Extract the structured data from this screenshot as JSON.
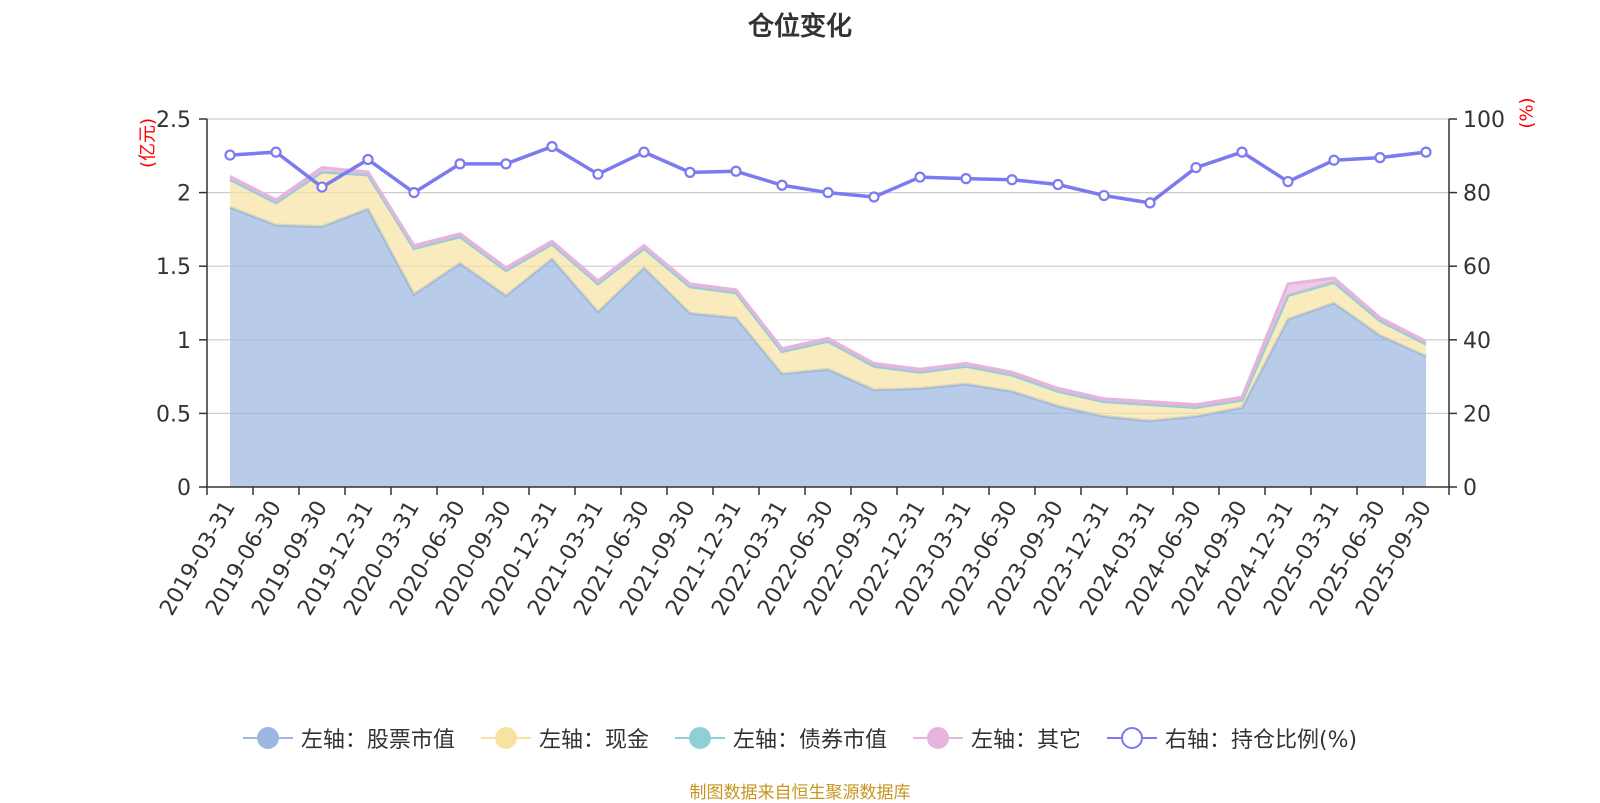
{
  "title": "仓位变化",
  "source_note": "制图数据来自恒生聚源数据库",
  "colors": {
    "stock": "#9db7e0",
    "cash": "#f7e3a1",
    "bond": "#8fd0d6",
    "other": "#e6b4dc",
    "ratio": "#7b7bef",
    "axis_unit": "#ff0000",
    "source": "#c8961e"
  },
  "chart_data": {
    "type": "area",
    "title": "仓位变化",
    "x": [
      "2019-03-31",
      "2019-06-30",
      "2019-09-30",
      "2019-12-31",
      "2020-03-31",
      "2020-06-30",
      "2020-09-30",
      "2020-12-31",
      "2021-03-31",
      "2021-06-30",
      "2021-09-30",
      "2021-12-31",
      "2022-03-31",
      "2022-06-30",
      "2022-09-30",
      "2022-12-31",
      "2023-03-31",
      "2023-06-30",
      "2023-09-30",
      "2023-12-31",
      "2024-03-31",
      "2024-06-30",
      "2024-09-30",
      "2024-12-31",
      "2025-03-31",
      "2025-06-30",
      "2025-09-30"
    ],
    "left_axis": {
      "unit": "(亿元)",
      "ylim": [
        0,
        2.5
      ],
      "ticks": [
        "0",
        "0.5",
        "1",
        "1.5",
        "2",
        "2.5"
      ]
    },
    "right_axis": {
      "unit": "(%)",
      "ylim": [
        0,
        100
      ],
      "ticks": [
        "0",
        "20",
        "40",
        "60",
        "80",
        "100"
      ]
    },
    "series": [
      {
        "name": "左轴：股票市值",
        "axis": "left",
        "stacked": true,
        "color_key": "stock",
        "values": [
          1.9,
          1.78,
          1.77,
          1.89,
          1.31,
          1.52,
          1.3,
          1.55,
          1.19,
          1.49,
          1.18,
          1.15,
          0.77,
          0.8,
          0.66,
          0.67,
          0.7,
          0.65,
          0.55,
          0.48,
          0.45,
          0.48,
          0.54,
          1.14,
          1.25,
          1.03,
          0.89
        ]
      },
      {
        "name": "左轴：现金",
        "axis": "left",
        "stacked": true,
        "color_key": "cash",
        "values": [
          0.19,
          0.15,
          0.37,
          0.23,
          0.31,
          0.18,
          0.17,
          0.1,
          0.19,
          0.13,
          0.18,
          0.17,
          0.15,
          0.19,
          0.16,
          0.11,
          0.12,
          0.11,
          0.1,
          0.1,
          0.11,
          0.06,
          0.05,
          0.16,
          0.14,
          0.1,
          0.08
        ]
      },
      {
        "name": "左轴：债券市值",
        "axis": "left",
        "stacked": true,
        "color_key": "bond",
        "values": [
          0,
          0,
          0,
          0,
          0,
          0,
          0,
          0,
          0,
          0,
          0,
          0,
          0,
          0,
          0,
          0,
          0,
          0,
          0,
          0,
          0,
          0,
          0,
          0,
          0,
          0,
          0
        ]
      },
      {
        "name": "左轴：其它",
        "axis": "left",
        "stacked": true,
        "color_key": "other",
        "values": [
          0.02,
          0.02,
          0.03,
          0.02,
          0.02,
          0.02,
          0.02,
          0.02,
          0.02,
          0.02,
          0.02,
          0.02,
          0.02,
          0.02,
          0.02,
          0.02,
          0.02,
          0.02,
          0.02,
          0.02,
          0.02,
          0.02,
          0.02,
          0.08,
          0.03,
          0.02,
          0.02
        ]
      },
      {
        "name": "右轴：持仓比例(%)",
        "axis": "right",
        "stacked": false,
        "color_key": "ratio",
        "values": [
          90.2,
          91.0,
          81.5,
          89.0,
          80.0,
          87.8,
          87.8,
          92.5,
          85.0,
          91.0,
          85.5,
          85.8,
          82.0,
          80.0,
          78.8,
          84.2,
          83.8,
          83.5,
          82.2,
          79.2,
          77.2,
          86.8,
          91.0,
          83.0,
          88.8,
          89.5,
          91.0
        ]
      }
    ]
  }
}
